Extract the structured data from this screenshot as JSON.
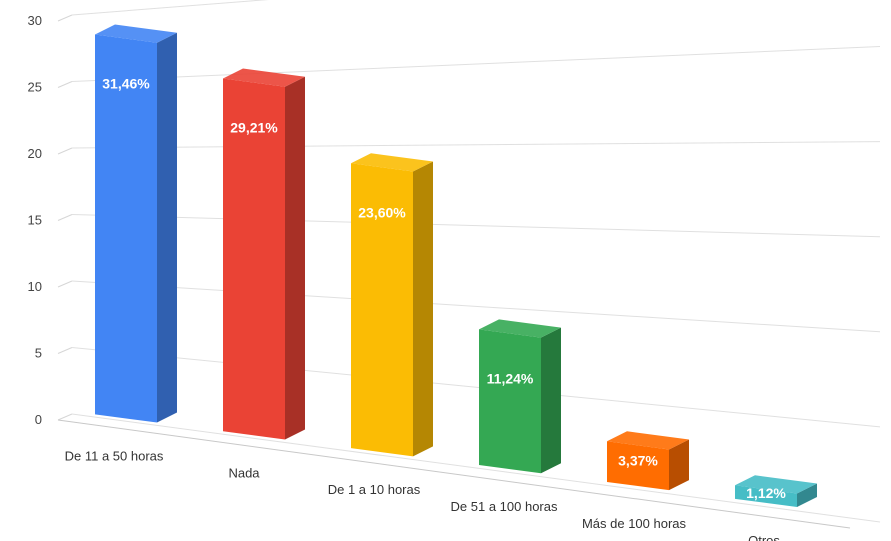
{
  "chart_data": {
    "type": "bar",
    "categories": [
      "De 11 a 50 horas",
      "Nada",
      "De 1 a 10 horas",
      "De 51 a 100 horas",
      "Más de 100 horas",
      "Otros"
    ],
    "values": [
      28,
      26,
      21,
      10,
      3,
      1
    ],
    "data_labels": [
      "31,46%",
      "29,21%",
      "23,60%",
      "11,24%",
      "3,37%",
      "1,12%"
    ],
    "colors": [
      "#4285F4",
      "#EA4335",
      "#FBBC04",
      "#34A853",
      "#FF6D01",
      "#46BDC6"
    ],
    "ylim": [
      0,
      30
    ],
    "y_ticks": [
      "0",
      "5",
      "10",
      "15",
      "20",
      "25",
      "30"
    ],
    "grid": true,
    "style": "3d"
  }
}
